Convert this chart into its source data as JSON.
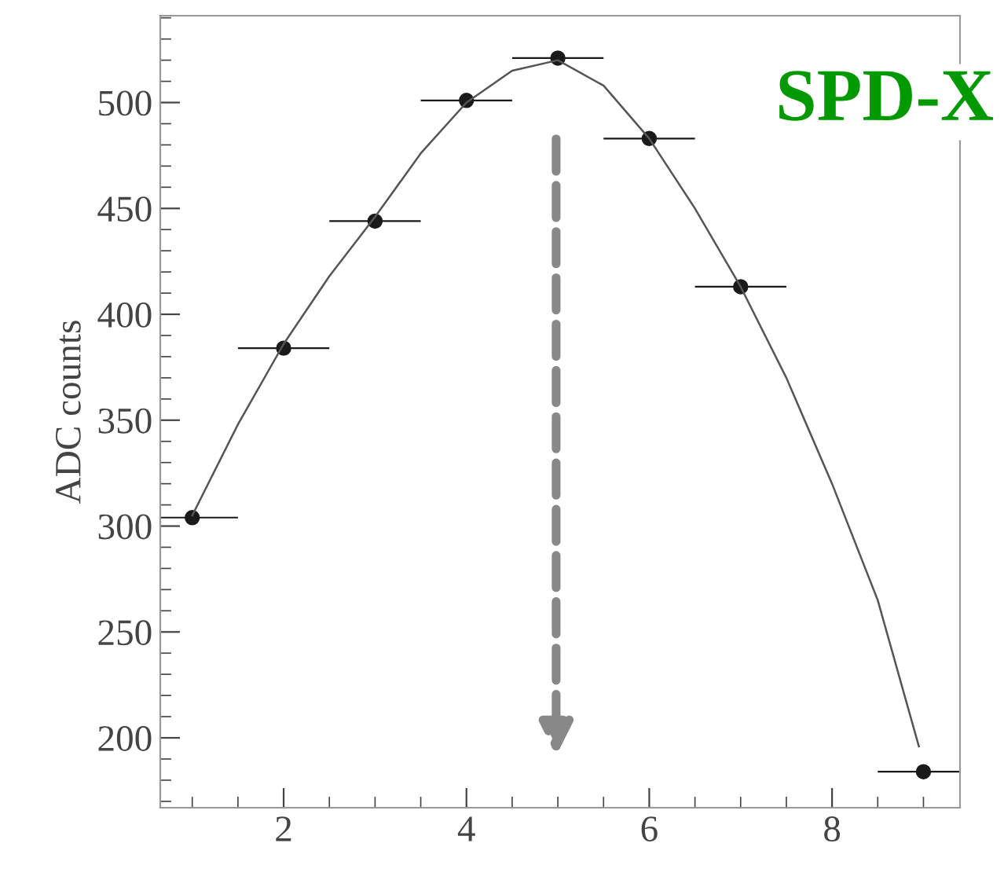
{
  "chart_data": {
    "type": "scatter",
    "ylabel": "ADC counts",
    "xlim": [
      0.65,
      9.4
    ],
    "ylim": [
      167,
      541
    ],
    "xticks": [
      2,
      4,
      6,
      8
    ],
    "yticks": [
      200,
      250,
      300,
      350,
      400,
      450,
      500
    ],
    "annotations": [
      "SPD-X"
    ],
    "series": [
      {
        "color": "#1a1a1a",
        "marker": "circle",
        "x": [
          1,
          2,
          3,
          4,
          5,
          6,
          7,
          9
        ],
        "values": [
          304,
          384,
          444,
          501,
          521,
          483,
          413,
          184
        ],
        "xerrors": [
          0.5,
          0.5,
          0.5,
          0.5,
          0.5,
          0.5,
          0.5,
          0.5
        ]
      },
      {
        "type": "line",
        "color": "#555555",
        "x": [
          1.0,
          1.5,
          2.0,
          2.5,
          3.0,
          3.5,
          4.0,
          4.5,
          5.0,
          5.5,
          6.0,
          6.5,
          7.0,
          7.5,
          8.0,
          8.5,
          8.95
        ],
        "values": [
          305,
          348,
          386,
          418,
          446,
          476,
          500,
          515,
          520,
          508,
          483,
          450,
          413,
          370,
          320,
          265,
          196
        ]
      }
    ]
  }
}
